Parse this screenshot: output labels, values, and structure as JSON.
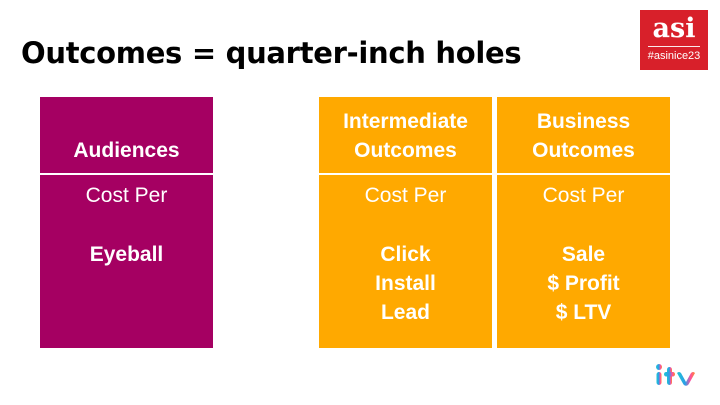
{
  "slide": {
    "title": "Outcomes = quarter-inch holes"
  },
  "badge": {
    "logo": "asi",
    "tag": "#asinice23",
    "color": "#d8202a"
  },
  "cards": [
    {
      "heading": [
        "Audiences"
      ],
      "subtitle": "Cost Per",
      "items": [
        "Eyeball"
      ],
      "color": "#a50062"
    },
    {
      "heading": [
        "Intermediate",
        "Outcomes"
      ],
      "subtitle": "Cost Per",
      "items": [
        "Click",
        "Install",
        "Lead"
      ],
      "color": "#ffa900"
    },
    {
      "heading": [
        "Business",
        "Outcomes"
      ],
      "subtitle": "Cost Per",
      "items": [
        "Sale",
        "$ Profit",
        "$ LTV"
      ],
      "color": "#ffa900"
    }
  ],
  "footer": {
    "logo": "itv-logo"
  }
}
